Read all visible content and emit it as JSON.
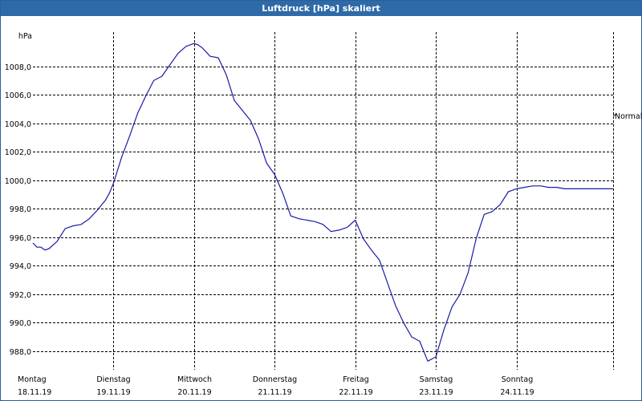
{
  "window": {
    "title": "Luftdruck [hPa] skaliert"
  },
  "chart_data": {
    "type": "line",
    "title": "Luftdruck [hPa] skaliert",
    "ylabel": "hPa",
    "ylim": [
      986.7,
      1010.4
    ],
    "yticks": [
      988.0,
      990.0,
      992.0,
      994.0,
      996.0,
      998.0,
      1000.0,
      1002.0,
      1004.0,
      1006.0,
      1008.0
    ],
    "ytick_labels": [
      "988,0",
      "990,0",
      "992,0",
      "994,0",
      "996,0",
      "998,0",
      "1000,0",
      "1002,0",
      "1004,0",
      "1006,0",
      "1008,0"
    ],
    "xlim": [
      0,
      7.2
    ],
    "xticks": [
      {
        "day": "Montag",
        "date": "18.11.19"
      },
      {
        "day": "Dienstag",
        "date": "19.11.19"
      },
      {
        "day": "Mittwoch",
        "date": "20.11.19"
      },
      {
        "day": "Donnerstag",
        "date": "21.11.19"
      },
      {
        "day": "Freitag",
        "date": "22.11.19"
      },
      {
        "day": "Samstag",
        "date": "23.11.19"
      },
      {
        "day": "Sonntag",
        "date": "24.11.19"
      }
    ],
    "reference_line": {
      "label": "Normal",
      "value": 1004.6
    },
    "grid": true,
    "line_color": "#1a1aa6",
    "series": [
      {
        "x": [
          0.0,
          0.05,
          0.1,
          0.15,
          0.2,
          0.3,
          0.4,
          0.5,
          0.6,
          0.7,
          0.8,
          0.9,
          0.95,
          1.0,
          1.1,
          1.2,
          1.3,
          1.4,
          1.5,
          1.6,
          1.7,
          1.75,
          1.8,
          1.9,
          2.0,
          2.05,
          2.1,
          2.2,
          2.3,
          2.4,
          2.5,
          2.6,
          2.7,
          2.8,
          2.9,
          3.0,
          3.1,
          3.2,
          3.3,
          3.4,
          3.5,
          3.6,
          3.7,
          3.8,
          3.9,
          4.0,
          4.1,
          4.2,
          4.3,
          4.4,
          4.5,
          4.6,
          4.7,
          4.8,
          4.9,
          5.0,
          5.1,
          5.2,
          5.3,
          5.4,
          5.5,
          5.6,
          5.7,
          5.8,
          5.9,
          6.0,
          6.1,
          6.2,
          6.3,
          6.4,
          6.5,
          6.6,
          6.7,
          6.8,
          6.9,
          7.0,
          7.1,
          7.2
        ],
        "y": [
          995.6,
          995.3,
          995.3,
          995.1,
          995.2,
          995.7,
          996.6,
          996.8,
          996.9,
          997.3,
          997.9,
          998.6,
          999.1,
          999.8,
          1001.6,
          1003.1,
          1004.7,
          1005.9,
          1007.0,
          1007.3,
          1008.1,
          1008.5,
          1008.9,
          1009.4,
          1009.6,
          1009.5,
          1009.3,
          1008.7,
          1008.6,
          1007.4,
          1005.6,
          1004.9,
          1004.2,
          1002.9,
          1001.2,
          1000.4,
          999.1,
          997.5,
          997.3,
          997.2,
          997.1,
          996.9,
          996.4,
          996.5,
          996.7,
          997.2,
          995.9,
          995.1,
          994.4,
          992.8,
          991.2,
          990.0,
          989.0,
          988.7,
          987.3,
          987.6,
          989.5,
          991.1,
          992.0,
          993.5,
          995.9,
          997.6,
          997.8,
          998.3,
          999.2,
          999.4,
          999.5,
          999.6,
          999.6,
          999.5,
          999.5,
          999.4,
          999.4,
          999.4,
          999.4,
          999.4,
          999.4,
          999.4
        ]
      }
    ]
  }
}
